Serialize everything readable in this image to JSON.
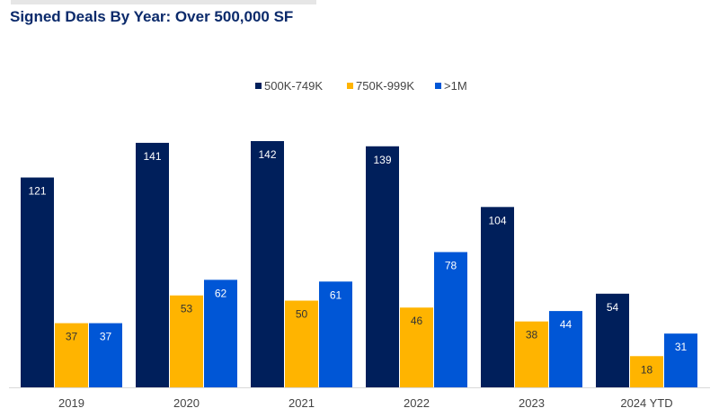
{
  "chart_data": {
    "type": "bar",
    "title": "Signed Deals By Year: Over 500,000 SF",
    "xlabel": "",
    "ylabel": "",
    "categories": [
      "2019",
      "2020",
      "2021",
      "2022",
      "2023",
      "2024 YTD"
    ],
    "series": [
      {
        "name": "500K-749K",
        "color": "#001f5b",
        "label_color": "#ffffff",
        "values": [
          121,
          141,
          142,
          139,
          104,
          54
        ]
      },
      {
        "name": "750K-999K",
        "color": "#ffb400",
        "label_color": "#333333",
        "values": [
          37,
          53,
          50,
          46,
          38,
          18
        ]
      },
      {
        "name": ">1M",
        "color": "#0056d6",
        "label_color": "#ffffff",
        "values": [
          37,
          62,
          61,
          78,
          44,
          31
        ]
      }
    ],
    "ylim": [
      0,
      142
    ],
    "grid": false,
    "legend_position": "top-center",
    "data_labels": true
  }
}
